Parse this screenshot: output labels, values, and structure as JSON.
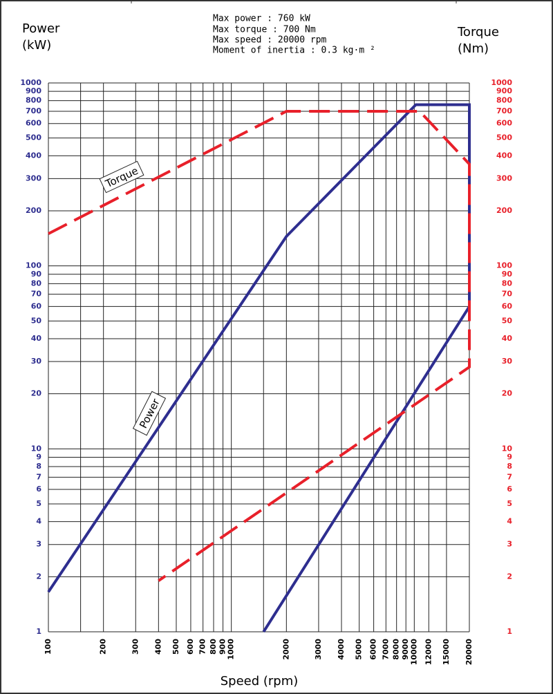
{
  "chart_data": {
    "type": "line",
    "header": [
      "Max power : 760 kW",
      "Max torque : 700 Nm",
      "Max speed : 20000 rpm",
      "Moment of inertia : 0.3 kg·m ²"
    ],
    "ylabel": "Power",
    "yunit": "(kW)",
    "y2label": "Torque",
    "y2unit": "(Nm)",
    "xlabel": "Speed (rpm)",
    "xlog": true,
    "ylog": true,
    "grid": true,
    "xlim": [
      100,
      20000
    ],
    "xticks": [
      100,
      200,
      300,
      400,
      500,
      600,
      700,
      800,
      900,
      1000,
      2000,
      3000,
      4000,
      5000,
      6000,
      7000,
      8000,
      9000,
      10000,
      12000,
      15000,
      20000
    ],
    "x_unlabeled_grid": [
      150,
      1500
    ],
    "ylim": [
      1,
      1000
    ],
    "yticks": [
      1,
      2,
      3,
      4,
      5,
      6,
      7,
      8,
      9,
      10,
      20,
      30,
      40,
      50,
      60,
      70,
      80,
      90,
      100,
      200,
      300,
      400,
      500,
      600,
      700,
      800,
      900,
      1000
    ],
    "y2lim": [
      1,
      1000
    ],
    "y2ticks": [
      1,
      2,
      3,
      4,
      5,
      6,
      7,
      8,
      9,
      10,
      20,
      30,
      40,
      50,
      60,
      70,
      80,
      90,
      100,
      200,
      300,
      400,
      500,
      600,
      700,
      800,
      900,
      1000
    ],
    "series": [
      {
        "name": "Power",
        "color": "#2e2e8f",
        "x": [
          100,
          2000,
          10200,
          20000,
          20000,
          1500
        ],
        "values": [
          1.65,
          145,
          760,
          760,
          60,
          1
        ]
      },
      {
        "name": "Torque",
        "color": "#e8202a",
        "axis": "y2",
        "dashed": true,
        "x": [
          100,
          2000,
          10700,
          20000,
          20000,
          400
        ],
        "values": [
          150,
          700,
          700,
          360,
          28,
          1.9
        ]
      }
    ]
  }
}
